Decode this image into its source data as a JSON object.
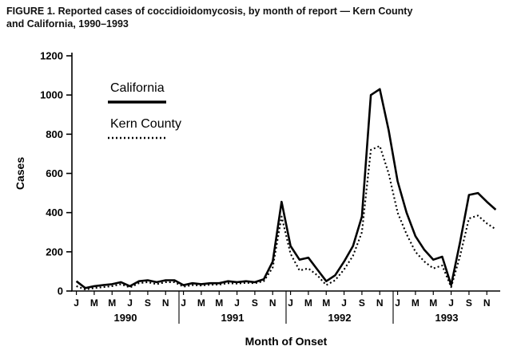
{
  "title": {
    "line1": "FIGURE 1. Reported cases of coccidioidomycosis, by month of report — Kern County",
    "line2": "and California, 1990–1993"
  },
  "chart_data": {
    "type": "line",
    "title": "Reported cases of coccidioidomycosis, by month of report — Kern County and California, 1990–1993",
    "xlabel": "Month of Onset",
    "ylabel": "Cases",
    "ylim": [
      0,
      1200
    ],
    "ytick_interval": 200,
    "grid": false,
    "legend_position": "top-left",
    "line_color": "#000000",
    "month_tick_labels": [
      "J",
      "M",
      "M",
      "J",
      "S",
      "N"
    ],
    "years": [
      "1990",
      "1991",
      "1992",
      "1993"
    ],
    "series": [
      {
        "name": "California",
        "style": "solid",
        "values": [
          50,
          15,
          25,
          30,
          35,
          45,
          25,
          50,
          55,
          45,
          55,
          55,
          30,
          40,
          35,
          40,
          40,
          50,
          45,
          50,
          45,
          60,
          150,
          455,
          230,
          160,
          170,
          110,
          50,
          80,
          150,
          230,
          380,
          1000,
          1030,
          820,
          560,
          400,
          280,
          210,
          160,
          175,
          30,
          250,
          490,
          500,
          455,
          415
        ]
      },
      {
        "name": "Kern County",
        "style": "dotted",
        "values": [
          25,
          8,
          15,
          20,
          25,
          35,
          18,
          40,
          45,
          35,
          45,
          45,
          22,
          30,
          28,
          32,
          33,
          40,
          38,
          42,
          40,
          50,
          120,
          380,
          190,
          105,
          115,
          80,
          30,
          55,
          110,
          180,
          300,
          720,
          740,
          600,
          400,
          290,
          200,
          150,
          115,
          130,
          20,
          180,
          370,
          385,
          345,
          315
        ]
      }
    ]
  }
}
